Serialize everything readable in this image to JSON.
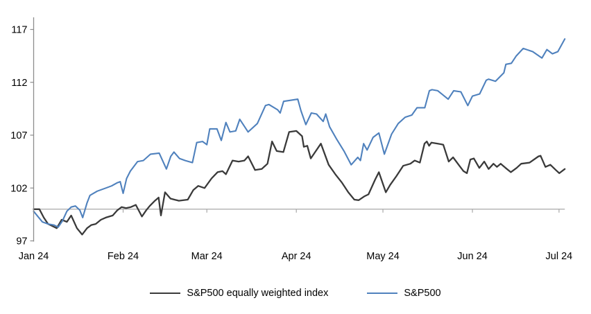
{
  "chart_data": {
    "type": "line",
    "title": "",
    "description": "Indexed performance (start of 2024 = 100) of S&P500 vs S&P500 equally weighted index, Jan 2024 to early Jul 2024",
    "x_axis": {
      "tick_labels": [
        "Jan 24",
        "Feb 24",
        "Mar 24",
        "Apr 24",
        "May 24",
        "Jun 24",
        "Jul 24"
      ],
      "month_day_offsets": [
        0,
        31,
        60,
        91,
        121,
        152,
        182
      ],
      "domain_days": [
        0,
        184
      ]
    },
    "y_axis": {
      "ticks": [
        97,
        102,
        107,
        112,
        117
      ],
      "tick_labels": [
        "97",
        "102",
        "107",
        "112",
        "117"
      ],
      "range": [
        97,
        118.2
      ],
      "baseline_value": 100,
      "grid": "off"
    },
    "legend_position": "bottom",
    "series": [
      {
        "name": "S&P500 equally weighted index",
        "color": "#3a3a3a",
        "points": [
          [
            0,
            100.0
          ],
          [
            2,
            100.0
          ],
          [
            3.5,
            99.2
          ],
          [
            5,
            98.6
          ],
          [
            6.5,
            98.4
          ],
          [
            8,
            98.2
          ],
          [
            9.7,
            99.0
          ],
          [
            11.5,
            98.8
          ],
          [
            13,
            99.4
          ],
          [
            15,
            98.2
          ],
          [
            16.8,
            97.6
          ],
          [
            18.5,
            98.2
          ],
          [
            20,
            98.5
          ],
          [
            21.5,
            98.6
          ],
          [
            23.3,
            99.0
          ],
          [
            25,
            99.2
          ],
          [
            27.4,
            99.4
          ],
          [
            29,
            99.9
          ],
          [
            30.5,
            100.2
          ],
          [
            32,
            100.1
          ],
          [
            33.7,
            100.2
          ],
          [
            35.4,
            100.4
          ],
          [
            37.5,
            99.3
          ],
          [
            39,
            99.9
          ],
          [
            40.2,
            100.3
          ],
          [
            42,
            100.8
          ],
          [
            43.3,
            101.1
          ],
          [
            44.1,
            99.4
          ],
          [
            45.5,
            101.6
          ],
          [
            47.4,
            101.0
          ],
          [
            50.3,
            100.8
          ],
          [
            53.4,
            100.9
          ],
          [
            55.3,
            101.8
          ],
          [
            57,
            102.2
          ],
          [
            59.2,
            102.0
          ],
          [
            61.6,
            102.9
          ],
          [
            63.7,
            103.5
          ],
          [
            65.4,
            103.6
          ],
          [
            66.6,
            103.3
          ],
          [
            68.9,
            104.6
          ],
          [
            71,
            104.5
          ],
          [
            73,
            104.6
          ],
          [
            74.3,
            105.0
          ],
          [
            76.7,
            103.7
          ],
          [
            79,
            103.8
          ],
          [
            81,
            104.3
          ],
          [
            82.6,
            106.4
          ],
          [
            84.2,
            105.5
          ],
          [
            86.5,
            105.4
          ],
          [
            88.5,
            107.3
          ],
          [
            91,
            107.4
          ],
          [
            93,
            106.9
          ],
          [
            93.6,
            105.9
          ],
          [
            94.8,
            106.0
          ],
          [
            96,
            104.8
          ],
          [
            97.5,
            105.4
          ],
          [
            99.5,
            106.2
          ],
          [
            102.2,
            104.2
          ],
          [
            104.5,
            103.3
          ],
          [
            106.8,
            102.5
          ],
          [
            109,
            101.6
          ],
          [
            111.1,
            100.9
          ],
          [
            112.6,
            100.85
          ],
          [
            114.5,
            101.2
          ],
          [
            116,
            101.4
          ],
          [
            118.3,
            102.8
          ],
          [
            119.6,
            103.5
          ],
          [
            122,
            101.6
          ],
          [
            123.5,
            102.3
          ],
          [
            125.6,
            103.1
          ],
          [
            128,
            104.1
          ],
          [
            130.5,
            104.3
          ],
          [
            132,
            104.6
          ],
          [
            133.8,
            104.4
          ],
          [
            135.4,
            106.2
          ],
          [
            136.2,
            106.4
          ],
          [
            137,
            106.0
          ],
          [
            137.8,
            106.3
          ],
          [
            140,
            106.2
          ],
          [
            141.9,
            106.1
          ],
          [
            143.8,
            104.5
          ],
          [
            145.3,
            104.9
          ],
          [
            147.5,
            104.1
          ],
          [
            148.9,
            103.6
          ],
          [
            150.1,
            103.4
          ],
          [
            151.3,
            104.7
          ],
          [
            152.5,
            104.8
          ],
          [
            154.4,
            103.9
          ],
          [
            156.1,
            104.5
          ],
          [
            157.6,
            103.8
          ],
          [
            159.3,
            104.3
          ],
          [
            160.5,
            104.0
          ],
          [
            161.8,
            104.3
          ],
          [
            163.5,
            103.9
          ],
          [
            165.3,
            103.5
          ],
          [
            167.3,
            103.9
          ],
          [
            168.9,
            104.3
          ],
          [
            171.8,
            104.4
          ],
          [
            174.9,
            105.0
          ],
          [
            175.6,
            105.05
          ],
          [
            177.3,
            104.0
          ],
          [
            179,
            104.2
          ],
          [
            180.9,
            103.7
          ],
          [
            182.1,
            103.4
          ],
          [
            184,
            103.8
          ]
        ]
      },
      {
        "name": "S&P500",
        "color": "#4f81bd",
        "points": [
          [
            0,
            99.8
          ],
          [
            1.5,
            99.3
          ],
          [
            3,
            98.8
          ],
          [
            5,
            98.6
          ],
          [
            7,
            98.5
          ],
          [
            8.5,
            98.3
          ],
          [
            10,
            98.9
          ],
          [
            11.5,
            99.8
          ],
          [
            13,
            100.2
          ],
          [
            14.5,
            100.3
          ],
          [
            16,
            99.9
          ],
          [
            17,
            99.2
          ],
          [
            18.5,
            100.6
          ],
          [
            19.5,
            101.3
          ],
          [
            22,
            101.7
          ],
          [
            25,
            102.0
          ],
          [
            27,
            102.2
          ],
          [
            29,
            102.5
          ],
          [
            30,
            102.6
          ],
          [
            31,
            101.5
          ],
          [
            32.2,
            102.9
          ],
          [
            33.5,
            103.6
          ],
          [
            36,
            104.5
          ],
          [
            38,
            104.6
          ],
          [
            40.5,
            105.2
          ],
          [
            43.5,
            105.3
          ],
          [
            46,
            103.8
          ],
          [
            47.5,
            105.0
          ],
          [
            48.6,
            105.4
          ],
          [
            50.5,
            104.8
          ],
          [
            52.5,
            104.6
          ],
          [
            55,
            104.4
          ],
          [
            56.5,
            106.3
          ],
          [
            58.5,
            106.4
          ],
          [
            60,
            106.1
          ],
          [
            61,
            107.6
          ],
          [
            63.5,
            107.6
          ],
          [
            65,
            106.5
          ],
          [
            66.6,
            108.2
          ],
          [
            68,
            107.3
          ],
          [
            70,
            107.4
          ],
          [
            71.4,
            108.5
          ],
          [
            74.3,
            107.3
          ],
          [
            77.5,
            108.1
          ],
          [
            80.3,
            109.8
          ],
          [
            81.5,
            109.9
          ],
          [
            84.5,
            109.4
          ],
          [
            85.4,
            109.1
          ],
          [
            86.6,
            110.2
          ],
          [
            89,
            110.3
          ],
          [
            91.5,
            110.4
          ],
          [
            92.6,
            109.3
          ],
          [
            94.3,
            108.0
          ],
          [
            96.2,
            109.1
          ],
          [
            98,
            109.0
          ],
          [
            100.3,
            108.3
          ],
          [
            101.2,
            109.0
          ],
          [
            102.5,
            107.8
          ],
          [
            105,
            106.6
          ],
          [
            107.5,
            105.5
          ],
          [
            110,
            104.2
          ],
          [
            112.3,
            104.9
          ],
          [
            113.2,
            104.6
          ],
          [
            114.3,
            106.2
          ],
          [
            115.5,
            105.6
          ],
          [
            117.6,
            106.8
          ],
          [
            119.6,
            107.2
          ],
          [
            121.5,
            105.2
          ],
          [
            124,
            107.1
          ],
          [
            126.3,
            108.1
          ],
          [
            128.7,
            108.7
          ],
          [
            131,
            108.9
          ],
          [
            132.8,
            109.6
          ],
          [
            135.5,
            109.6
          ],
          [
            137.1,
            111.2
          ],
          [
            138,
            111.3
          ],
          [
            140,
            111.2
          ],
          [
            143.6,
            110.4
          ],
          [
            145.5,
            111.2
          ],
          [
            148,
            111.1
          ],
          [
            150.4,
            109.8
          ],
          [
            152,
            110.7
          ],
          [
            154.5,
            110.9
          ],
          [
            156.8,
            112.2
          ],
          [
            157.6,
            112.3
          ],
          [
            160,
            112.1
          ],
          [
            162.9,
            112.9
          ],
          [
            163.6,
            113.7
          ],
          [
            165.5,
            113.8
          ],
          [
            167.2,
            114.5
          ],
          [
            169.6,
            115.2
          ],
          [
            172.9,
            114.9
          ],
          [
            176.1,
            114.3
          ],
          [
            177.8,
            115.1
          ],
          [
            179.7,
            114.7
          ],
          [
            181.6,
            114.9
          ],
          [
            184,
            116.1
          ]
        ]
      }
    ],
    "colors": {
      "axis": "#8c8c8c",
      "baseline": "#a8a8a8",
      "tick_text": "#000000",
      "background": "#ffffff"
    }
  }
}
